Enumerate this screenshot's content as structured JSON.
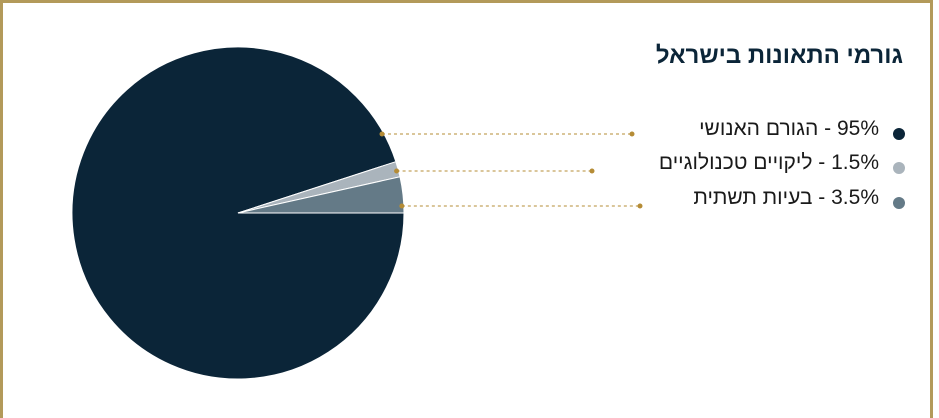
{
  "chart_data": {
    "type": "pie",
    "title": "גורמי התאונות בישראל",
    "slices": [
      {
        "label": "הגורם האנושי",
        "value": 95,
        "display": "95% - הגורם האנושי",
        "color": "#0b2538"
      },
      {
        "label": "ליקויים טכנולוגיים",
        "value": 1.5,
        "display": "1.5% - ליקויים טכנולוגיים",
        "color": "#aab4bc"
      },
      {
        "label": "בעיות תשתית",
        "value": 3.5,
        "display": "3.5% - בעיות תשתית",
        "color": "#647a87"
      }
    ],
    "legend_position": "right",
    "leader_color": "#b58c36",
    "frame_color": "#b39a5a"
  }
}
